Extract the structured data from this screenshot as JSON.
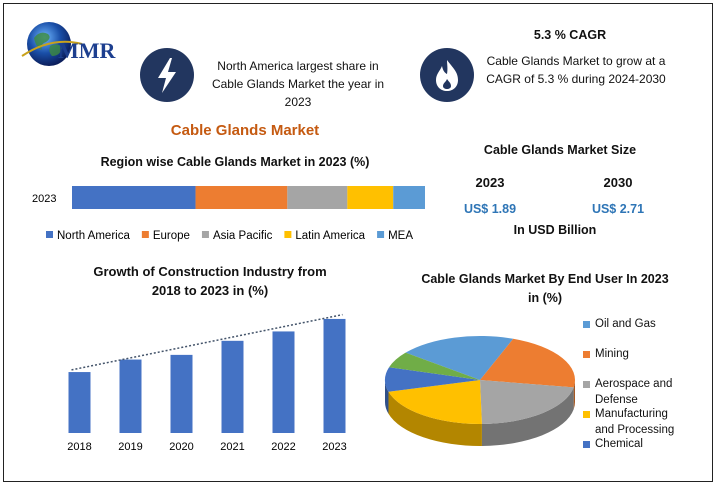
{
  "logo": {
    "text": "MMR"
  },
  "highlights": [
    {
      "icon": "lightning-icon",
      "text_lines": [
        "North America largest share in",
        "Cable Glands Market the year in",
        "2023"
      ]
    },
    {
      "icon": "flame-icon",
      "title": "5.3 % CAGR",
      "text_lines": [
        "Cable Glands Market to grow at a",
        "CAGR of 5.3 % during 2024-2030"
      ]
    }
  ],
  "main_title": "Cable Glands Market",
  "market_size": {
    "title": "Cable Glands Market Size",
    "years": [
      "2023",
      "2030"
    ],
    "values": [
      "US$ 1.89",
      "US$ 2.71"
    ],
    "unit": "In USD Billion"
  },
  "colors": {
    "accent_orange": "#c55a11",
    "value_blue": "#2e75b6",
    "icon_navy": "#22365f"
  },
  "chart_data": [
    {
      "type": "bar",
      "orientation": "horizontal-stacked",
      "title": "Region wise Cable Glands Market in 2023 (%)",
      "categories": [
        "2023"
      ],
      "series": [
        {
          "name": "North America",
          "values": [
            35
          ],
          "color": "#4472c4"
        },
        {
          "name": "Europe",
          "values": [
            26
          ],
          "color": "#ed7d31"
        },
        {
          "name": "Asia Pacific",
          "values": [
            17
          ],
          "color": "#a5a5a5"
        },
        {
          "name": "Latin America",
          "values": [
            13
          ],
          "color": "#ffc000"
        },
        {
          "name": "MEA",
          "values": [
            9
          ],
          "color": "#5b9bd5"
        }
      ],
      "legend_position": "bottom"
    },
    {
      "type": "bar",
      "title_lines": [
        "Growth of Construction Industry from",
        "2018 to 2023 in (%)"
      ],
      "categories": [
        "2018",
        "2019",
        "2020",
        "2021",
        "2022",
        "2023"
      ],
      "values": [
        3.9,
        4.7,
        5.0,
        5.9,
        6.5,
        7.3
      ],
      "ylim": [
        0,
        8
      ],
      "trendline": true,
      "grid": false,
      "color": "#4472c4"
    },
    {
      "type": "pie",
      "style": "3d",
      "title_lines": [
        "Cable Glands Market By End User In 2023",
        "in (%)"
      ],
      "slices": [
        {
          "name": "Oil and Gas",
          "value": 20,
          "color": "#5b9bd5"
        },
        {
          "name": "Mining",
          "value": 22,
          "color": "#ed7d31"
        },
        {
          "name": "Aerospace and Defense",
          "value": 22,
          "color": "#a5a5a5"
        },
        {
          "name": "Manufacturing and Processing",
          "value": 21,
          "color": "#ffc000"
        },
        {
          "name": "Chemical",
          "value": 9,
          "color": "#4472c4"
        },
        {
          "name": "",
          "value": 6,
          "color": "#70ad47"
        }
      ],
      "legend_entries": [
        {
          "lines": [
            "Oil and Gas"
          ],
          "color": "#5b9bd5"
        },
        {
          "lines": [
            "Mining"
          ],
          "color": "#ed7d31"
        },
        {
          "lines": [
            "Aerospace and",
            "Defense"
          ],
          "color": "#a5a5a5"
        },
        {
          "lines": [
            "Manufacturing",
            "and Processing"
          ],
          "color": "#ffc000"
        },
        {
          "lines": [
            "Chemical"
          ],
          "color": "#4472c4"
        }
      ],
      "legend_position": "right"
    }
  ]
}
